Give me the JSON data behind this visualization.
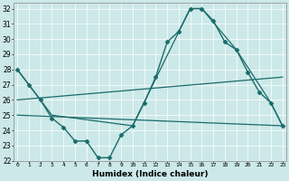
{
  "xlabel": "Humidex (Indice chaleur)",
  "xlim": [
    0,
    23
  ],
  "ylim": [
    22,
    32.4
  ],
  "yticks": [
    22,
    23,
    24,
    25,
    26,
    27,
    28,
    29,
    30,
    31,
    32
  ],
  "xticks": [
    0,
    1,
    2,
    3,
    4,
    5,
    6,
    7,
    8,
    9,
    10,
    11,
    12,
    13,
    14,
    15,
    16,
    17,
    18,
    19,
    20,
    21,
    22,
    23
  ],
  "bg_color": "#cce8e8",
  "line_color": "#1a6b6b",
  "grid_color": "#ffffff",
  "series": [
    {
      "x": [
        0,
        1,
        2,
        3,
        4,
        5,
        6,
        7,
        8,
        9,
        10,
        11,
        12,
        13,
        14,
        15,
        16,
        17,
        18,
        19,
        20,
        21,
        22,
        23
      ],
      "y": [
        28.0,
        27.0,
        26.0,
        24.8,
        24.2,
        23.3,
        23.3,
        22.2,
        22.2,
        23.7,
        24.3,
        25.8,
        27.5,
        29.8,
        30.5,
        32.0,
        32.0,
        31.2,
        29.8,
        29.3,
        27.8,
        26.5,
        25.8,
        24.3
      ],
      "marker": "D",
      "markersize": 2.5,
      "linewidth": 1.0
    },
    {
      "x": [
        0,
        2,
        3,
        10,
        15,
        16,
        19,
        22,
        23
      ],
      "y": [
        28.0,
        26.0,
        25.0,
        24.3,
        32.0,
        32.0,
        29.3,
        25.8,
        24.3
      ],
      "marker": null,
      "markersize": 0,
      "linewidth": 0.9
    },
    {
      "x": [
        0,
        23
      ],
      "y": [
        26.0,
        27.5
      ],
      "marker": null,
      "markersize": 0,
      "linewidth": 0.9
    },
    {
      "x": [
        0,
        23
      ],
      "y": [
        25.0,
        24.3
      ],
      "marker": null,
      "markersize": 0,
      "linewidth": 0.9
    }
  ]
}
